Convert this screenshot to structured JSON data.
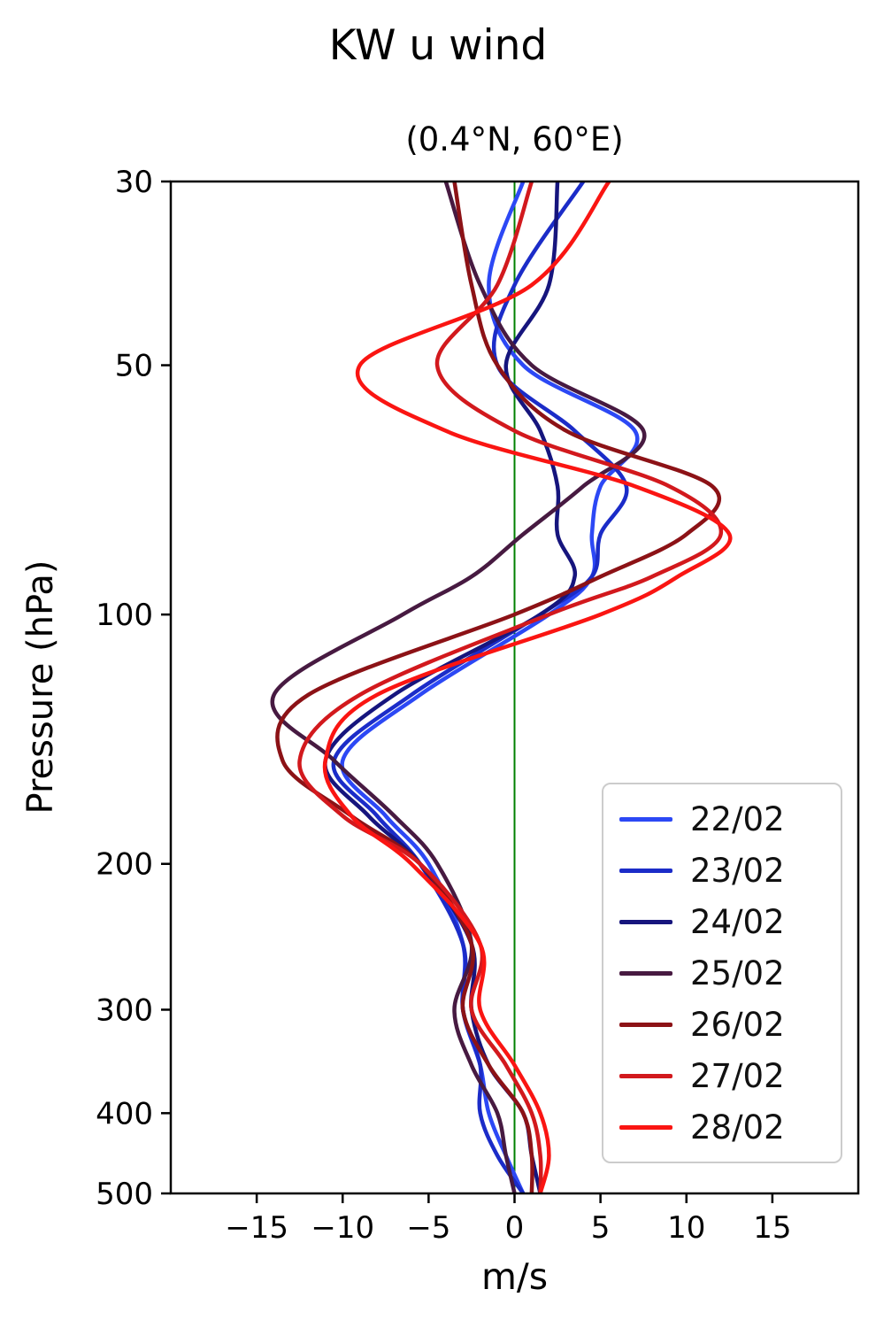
{
  "chart_data": {
    "type": "line",
    "title": "KW u wind",
    "subtitle": "(0.4°N, 60°E)",
    "xlabel": "m/s",
    "ylabel": "Pressure (hPa)",
    "xlim": [
      -20,
      20
    ],
    "ylim": [
      500,
      30
    ],
    "yscale": "log",
    "grid": false,
    "legend_position": "lower right",
    "x_ticks": [
      -15,
      -10,
      -5,
      0,
      5,
      10,
      15
    ],
    "y_ticks": [
      30,
      50,
      100,
      200,
      300,
      400,
      500
    ],
    "zero_line": {
      "x": 0,
      "color": "#008000"
    },
    "axis_color": "#000000",
    "pressure_levels": [
      30,
      40,
      50,
      60,
      70,
      80,
      90,
      100,
      125,
      150,
      175,
      200,
      250,
      300,
      350,
      400,
      450,
      500
    ],
    "series": [
      {
        "name": "22/02",
        "color": "#2c48f5",
        "values": [
          0.5,
          -1.5,
          0.5,
          7.0,
          5.0,
          4.5,
          4.5,
          2.0,
          -5.5,
          -10.0,
          -7.5,
          -5.0,
          -3.0,
          -3.0,
          -2.0,
          -1.5,
          -0.5,
          0.5
        ]
      },
      {
        "name": "23/02",
        "color": "#1b2cc8",
        "values": [
          4.0,
          0.0,
          -1.0,
          3.5,
          6.5,
          5.0,
          4.5,
          1.5,
          -6.0,
          -10.5,
          -8.0,
          -5.5,
          -3.0,
          -3.0,
          -2.0,
          -2.0,
          -1.0,
          0.5
        ]
      },
      {
        "name": "24/02",
        "color": "#16157d",
        "values": [
          2.5,
          2.0,
          -0.5,
          1.5,
          2.5,
          2.5,
          3.5,
          1.5,
          -7.0,
          -11.0,
          -8.5,
          -5.5,
          -2.5,
          -2.5,
          -1.5,
          0.5,
          1.0,
          1.5
        ]
      },
      {
        "name": "25/02",
        "color": "#471a41",
        "values": [
          -4.0,
          -2.0,
          1.0,
          7.5,
          4.0,
          0.5,
          -2.5,
          -6.5,
          -14.0,
          -10.5,
          -7.0,
          -4.5,
          -2.5,
          -3.5,
          -2.5,
          -1.0,
          -0.5,
          0.0
        ]
      },
      {
        "name": "26/02",
        "color": "#8c1216",
        "values": [
          -3.5,
          -2.5,
          -1.0,
          3.0,
          11.5,
          10.0,
          5.0,
          0.0,
          -12.0,
          -13.5,
          -9.5,
          -5.5,
          -2.5,
          -3.0,
          -1.5,
          0.5,
          1.0,
          1.0
        ]
      },
      {
        "name": "27/02",
        "color": "#d2191d",
        "values": [
          1.0,
          -1.0,
          -4.5,
          0.0,
          9.0,
          12.0,
          8.0,
          2.0,
          -9.0,
          -12.5,
          -10.0,
          -5.5,
          -2.0,
          -2.5,
          -0.5,
          1.0,
          1.5,
          1.5
        ]
      },
      {
        "name": "28/02",
        "color": "#fa1512",
        "values": [
          5.5,
          1.0,
          -9.0,
          -4.0,
          7.0,
          12.5,
          9.5,
          5.0,
          -8.0,
          -11.0,
          -9.5,
          -6.0,
          -2.0,
          -2.0,
          0.0,
          1.5,
          2.0,
          1.5
        ]
      }
    ]
  }
}
